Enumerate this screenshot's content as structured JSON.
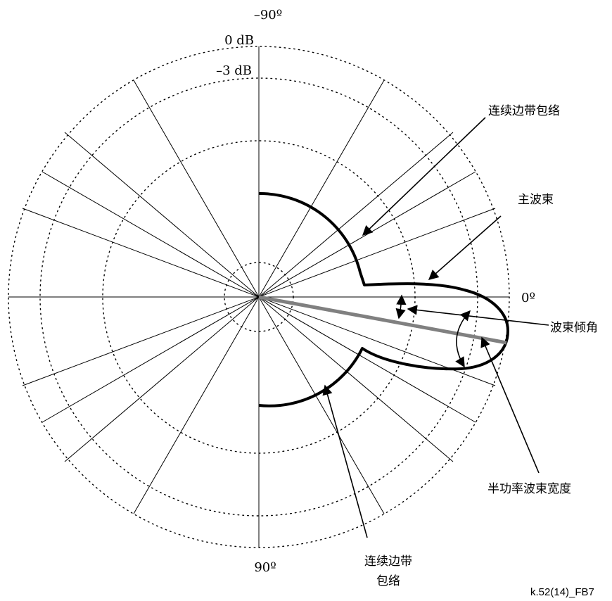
{
  "labels": {
    "angle_top": "–90º",
    "angle_right": "0º",
    "angle_bottom": "90º",
    "level_outer": "0 dB",
    "level_3db": "–3 dB"
  },
  "callouts": {
    "sideband_upper": "连续边带包络",
    "main_beam": "主波束",
    "tilt_angle": "波束倾角",
    "half_power_beamwidth": "半功率波束宽度",
    "sideband_lower_line1": "连续边带",
    "sideband_lower_line2": "包络"
  },
  "figure_id": "k.52(14)_FB7"
}
